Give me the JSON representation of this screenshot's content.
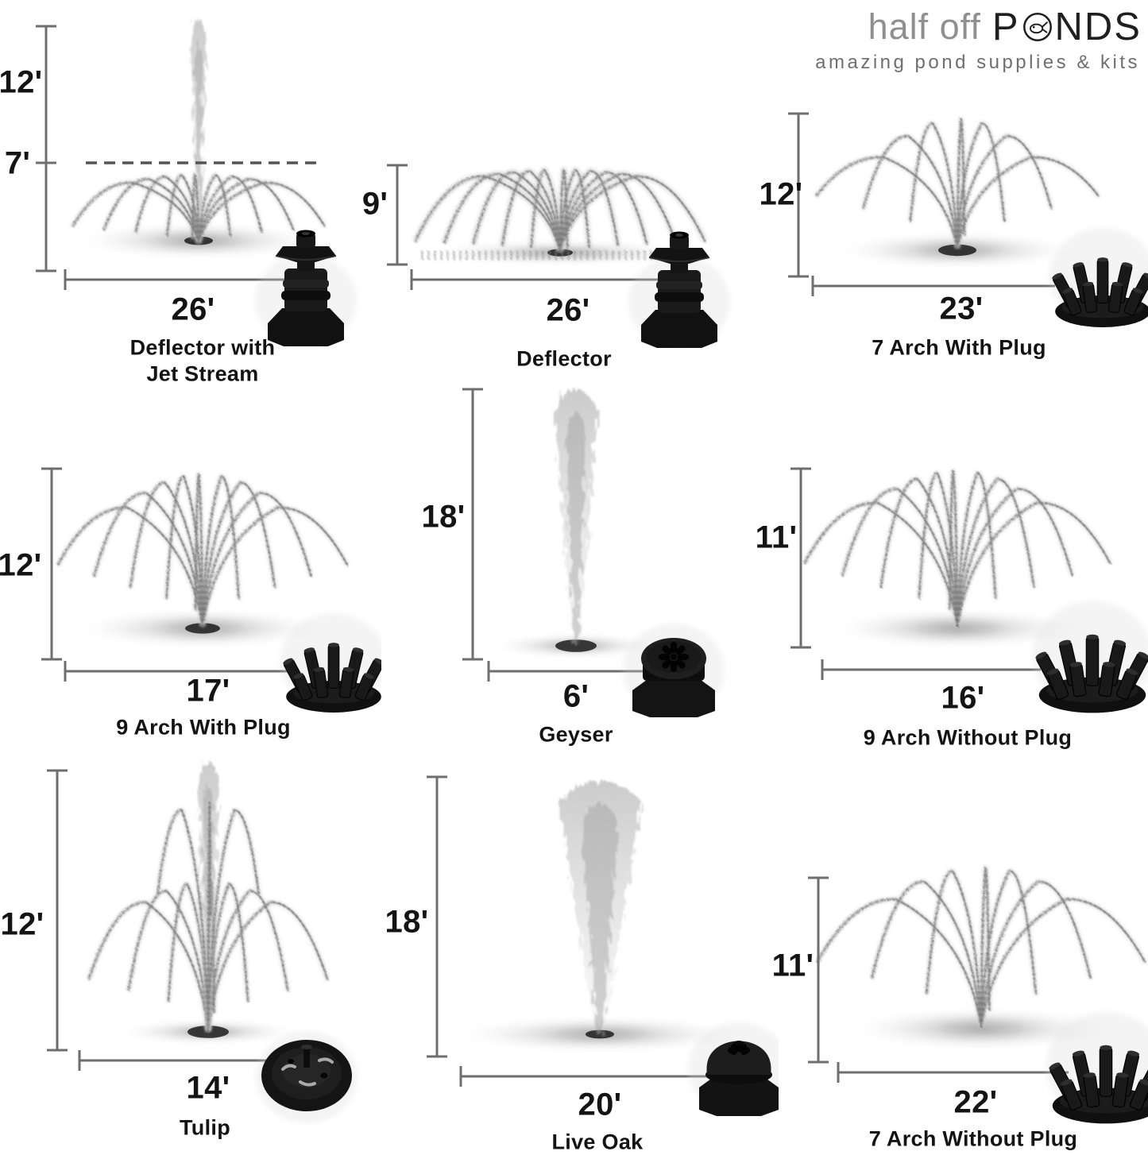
{
  "logo": {
    "name_prefix": "half off",
    "name_p": "P",
    "name_suffix": "NDS",
    "tagline": "amazing pond supplies & kits",
    "fish_icon": "fish-icon"
  },
  "panels": [
    {
      "name_line1": "Deflector with",
      "name_line2": "Jet Stream",
      "width_label": "26'",
      "height_label": "12'",
      "height_label2": "7'",
      "nozzle": "deflector-nozzle"
    },
    {
      "name_line1": "Deflector",
      "width_label": "26'",
      "height_label": "9'",
      "nozzle": "deflector-nozzle"
    },
    {
      "name_line1": "7 Arch With Plug",
      "width_label": "23'",
      "height_label": "12'",
      "nozzle": "multi-arch-nozzle"
    },
    {
      "name_line1": "9 Arch With Plug",
      "width_label": "17'",
      "height_label": "12'",
      "nozzle": "multi-arch-nozzle"
    },
    {
      "name_line1": "Geyser",
      "width_label": "6'",
      "height_label": "18'",
      "nozzle": "geyser-nozzle"
    },
    {
      "name_line1": "9 Arch Without Plug",
      "width_label": "16'",
      "height_label": "11'",
      "nozzle": "multi-arch-nozzle"
    },
    {
      "name_line1": "Tulip",
      "width_label": "14'",
      "height_label": "12'",
      "nozzle": "tulip-nozzle"
    },
    {
      "name_line1": "Live Oak",
      "width_label": "20'",
      "height_label": "18'",
      "nozzle": "live-oak-nozzle"
    },
    {
      "name_line1": "7 Arch Without Plug",
      "width_label": "22'",
      "height_label": "11'",
      "nozzle": "multi-arch-nozzle"
    }
  ],
  "colors": {
    "background": "#ffffff",
    "text": "#141414",
    "dimension_line": "#6e6e6e",
    "spray_gray": "#8d8d8d",
    "logo_dark": "#1f1f1f",
    "logo_gray": "#8f8f8f",
    "tagline_gray": "#6f6f6f",
    "nozzle_black": "#141414"
  }
}
